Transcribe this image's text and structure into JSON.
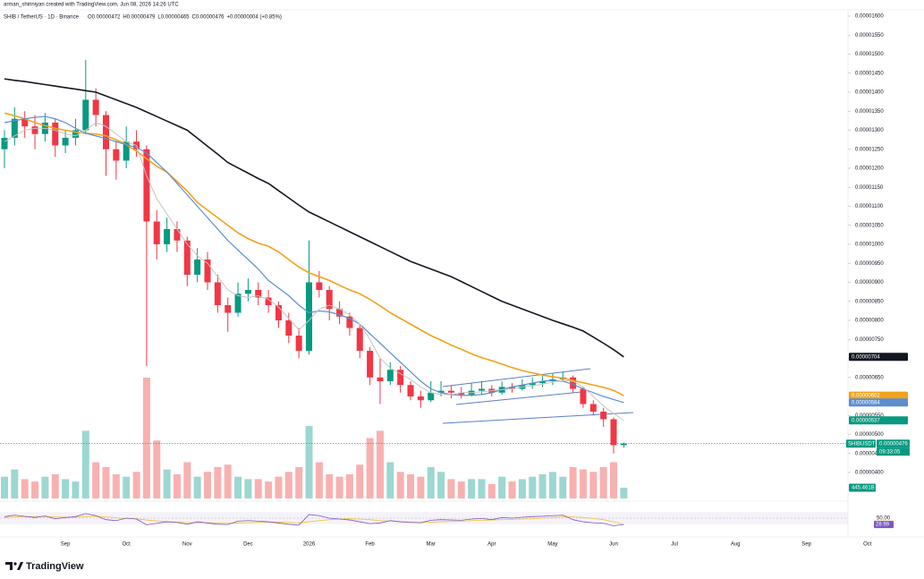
{
  "chart_data": {
    "type": "candlestick",
    "attribution": "arman_shiriniyan created with TradingView.com, Jun 08, 2026 14:26 UTC",
    "symbol": "SHIB / TetherUS · 1D · Binance",
    "ohlc": [
      "O0.00000472",
      "H0.00000479",
      "L0.00000465",
      "C0.00000476",
      "+0.00000004 (+0.85%)"
    ],
    "symbol_short": "SHIBUSDT",
    "countdown": "09:33:05",
    "brand": "TradingView",
    "up_color": "#089981",
    "down_color": "#f23645",
    "volume_up_color": "rgba(38,166,154,0.45)",
    "volume_down_color": "rgba(239,83,80,0.45)",
    "grid": false,
    "ylim": [
      4e-06,
      1.6e-05
    ],
    "yticks": [
      {
        "value": 4e-06,
        "label": "0.00000400"
      },
      {
        "value": 4.5e-06,
        "label": "0.00000450"
      },
      {
        "value": 5e-06,
        "label": "0.00000500"
      },
      {
        "value": 5.5e-06,
        "label": "0.00000550"
      },
      {
        "value": 6e-06,
        "label": "0.00000600"
      },
      {
        "value": 6.5e-06,
        "label": "0.00000650"
      },
      {
        "value": 7e-06,
        "label": "0.00000700"
      },
      {
        "value": 7.5e-06,
        "label": "0.00000750"
      },
      {
        "value": 8e-06,
        "label": "0.00000800"
      },
      {
        "value": 8.5e-06,
        "label": "0.00000850"
      },
      {
        "value": 9e-06,
        "label": "0.00000900"
      },
      {
        "value": 9.5e-06,
        "label": "0.00000950"
      },
      {
        "value": 1e-05,
        "label": "0.00001000"
      },
      {
        "value": 1.05e-05,
        "label": "0.00001050"
      },
      {
        "value": 1.1e-05,
        "label": "0.00001100"
      },
      {
        "value": 1.15e-05,
        "label": "0.00001150"
      },
      {
        "value": 1.2e-05,
        "label": "0.00001200"
      },
      {
        "value": 1.25e-05,
        "label": "0.00001250"
      },
      {
        "value": 1.3e-05,
        "label": "0.00001300"
      },
      {
        "value": 1.35e-05,
        "label": "0.00001350"
      },
      {
        "value": 1.4e-05,
        "label": "0.00001400"
      },
      {
        "value": 1.45e-05,
        "label": "0.00001450"
      },
      {
        "value": 1.5e-05,
        "label": "0.00001500"
      },
      {
        "value": 1.55e-05,
        "label": "0.00001550"
      },
      {
        "value": 1.6e-05,
        "label": "0.00001600"
      }
    ],
    "categories": [
      null,
      null,
      null,
      null,
      null,
      null,
      "Sep",
      null,
      null,
      null,
      null,
      null,
      "Oct",
      null,
      null,
      null,
      null,
      null,
      "Nov",
      null,
      null,
      null,
      null,
      null,
      "Dec",
      null,
      null,
      null,
      null,
      null,
      "2026",
      null,
      null,
      null,
      null,
      null,
      "Feb",
      null,
      null,
      null,
      null,
      null,
      "Mar",
      null,
      null,
      null,
      null,
      null,
      "Apr",
      null,
      null,
      null,
      null,
      null,
      "May",
      null,
      null,
      null,
      null,
      null,
      "Jun",
      null,
      null,
      null,
      null,
      null,
      "Jul",
      null,
      null,
      null,
      null,
      null,
      "Aug",
      null,
      null,
      null,
      null,
      null,
      null,
      "Sep",
      null,
      null,
      null,
      null,
      null,
      "Oct"
    ],
    "open": [
      1.25e-05,
      1.28e-05,
      1.33e-05,
      1.31e-05,
      1.29e-05,
      1.32e-05,
      1.26e-05,
      1.28e-05,
      1.3e-05,
      1.38e-05,
      1.34e-05,
      1.25e-05,
      1.22e-05,
      1.27e-05,
      1.25e-05,
      1.06e-05,
      1e-05,
      1.04e-05,
      1.01e-05,
      9.2e-06,
      9.6e-06,
      9e-06,
      8.4e-06,
      8.2e-06,
      8.7e-06,
      8.8e-06,
      8.6e-06,
      8.4e-06,
      8e-06,
      7.6e-06,
      7.2e-06,
      9e-06,
      8.8e-06,
      8.3e-06,
      8.1e-06,
      7.8e-06,
      7.2e-06,
      6.5e-06,
      6.4e-06,
      6.7e-06,
      6.3e-06,
      6e-06,
      5.9e-06,
      6.1e-06,
      6.15e-06,
      6.1e-06,
      6.05e-06,
      6.15e-06,
      6.2e-06,
      6.1e-06,
      6.25e-06,
      6.2e-06,
      6.3e-06,
      6.35e-06,
      6.4e-06,
      6.45e-06,
      6.5e-06,
      6.2e-06,
      5.8e-06,
      5.6e-06,
      5.4e-06,
      4.72e-06,
      null,
      null,
      null,
      null,
      null,
      null,
      null,
      null,
      null,
      null,
      null,
      null,
      null,
      null,
      null,
      null,
      null,
      null,
      null,
      null,
      null,
      null,
      null,
      null
    ],
    "high": [
      1.3e-05,
      1.36e-05,
      1.35e-05,
      1.34e-05,
      1.345e-05,
      1.33e-05,
      1.3e-05,
      1.33e-05,
      1.485e-05,
      1.41e-05,
      1.35e-05,
      1.27e-05,
      1.31e-05,
      1.3e-05,
      1.26e-05,
      1.09e-05,
      1.07e-05,
      1.06e-05,
      1.02e-05,
      9.9e-06,
      9.8e-06,
      9.2e-06,
      8.6e-06,
      9e-06,
      9.1e-06,
      9e-06,
      8.8e-06,
      8.5e-06,
      8.2e-06,
      7.8e-06,
      1.01e-05,
      9.3e-06,
      8.9e-06,
      8.5e-06,
      8.2e-06,
      7.9e-06,
      7.3e-06,
      7e-06,
      6.9e-06,
      6.8e-06,
      6.4e-06,
      6.15e-06,
      6.4e-06,
      6.4e-06,
      6.3e-06,
      6.25e-06,
      6.35e-06,
      6.4e-06,
      6.3e-06,
      6.4e-06,
      6.35e-06,
      6.45e-06,
      6.5e-06,
      6.55e-06,
      6.6e-06,
      6.65e-06,
      6.55e-06,
      6.25e-06,
      5.9e-06,
      5.7e-06,
      5.45e-06,
      4.79e-06,
      null,
      null,
      null,
      null,
      null,
      null,
      null,
      null,
      null,
      null,
      null,
      null,
      null,
      null,
      null,
      null,
      null,
      null,
      null,
      null,
      null,
      null,
      null,
      null
    ],
    "low": [
      1.2e-05,
      1.26e-05,
      1.28e-05,
      1.25e-05,
      1.27e-05,
      1.23e-05,
      1.24e-05,
      1.26e-05,
      1.29e-05,
      1.31e-05,
      1.18e-05,
      1.17e-05,
      1.2e-05,
      1.23e-05,
      6.8e-06,
      9.6e-06,
      9.8e-06,
      9.8e-06,
      8.9e-06,
      9e-06,
      8.8e-06,
      8.2e-06,
      7.7e-06,
      8.1e-06,
      8.5e-06,
      8.4e-06,
      8.2e-06,
      7.8e-06,
      7.4e-06,
      7e-06,
      7.1e-06,
      8.6e-06,
      8e-06,
      7.9e-06,
      7.6e-06,
      7e-06,
      6.3e-06,
      5.8e-06,
      6.3e-06,
      6.1e-06,
      5.9e-06,
      5.7e-06,
      5.85e-06,
      6e-06,
      5.95e-06,
      5.95e-06,
      6e-06,
      6.05e-06,
      6e-06,
      6.05e-06,
      6.1e-06,
      6.15e-06,
      6.2e-06,
      6.25e-06,
      6.3e-06,
      6.4e-06,
      6.1e-06,
      5.7e-06,
      5.5e-06,
      5.2e-06,
      4.5e-06,
      4.65e-06,
      null,
      null,
      null,
      null,
      null,
      null,
      null,
      null,
      null,
      null,
      null,
      null,
      null,
      null,
      null,
      null,
      null,
      null,
      null,
      null,
      null,
      null,
      null,
      null
    ],
    "close": [
      1.28e-05,
      1.33e-05,
      1.31e-05,
      1.29e-05,
      1.32e-05,
      1.26e-05,
      1.28e-05,
      1.3e-05,
      1.38e-05,
      1.34e-05,
      1.25e-05,
      1.22e-05,
      1.27e-05,
      1.25e-05,
      1.06e-05,
      1e-05,
      1.04e-05,
      1.01e-05,
      9.2e-06,
      9.6e-06,
      9e-06,
      8.4e-06,
      8.2e-06,
      8.7e-06,
      8.8e-06,
      8.6e-06,
      8.4e-06,
      8e-06,
      7.6e-06,
      7.2e-06,
      9e-06,
      8.8e-06,
      8.3e-06,
      8.1e-06,
      7.8e-06,
      7.2e-06,
      6.5e-06,
      6.4e-06,
      6.7e-06,
      6.3e-06,
      6e-06,
      5.9e-06,
      6.1e-06,
      6.15e-06,
      6.1e-06,
      6.05e-06,
      6.15e-06,
      6.2e-06,
      6.1e-06,
      6.25e-06,
      6.2e-06,
      6.3e-06,
      6.35e-06,
      6.4e-06,
      6.45e-06,
      6.5e-06,
      6.2e-06,
      5.8e-06,
      5.6e-06,
      5.4e-06,
      4.72e-06,
      4.76e-06,
      null,
      null,
      null,
      null,
      null,
      null,
      null,
      null,
      null,
      null,
      null,
      null,
      null,
      null,
      null,
      null,
      null,
      null,
      null,
      null,
      null,
      null,
      null,
      null
    ],
    "series": [
      {
        "color": "#131722",
        "label_color": "#131722",
        "values": [
          1.435e-05,
          1.431e-05,
          1.428e-05,
          1.424e-05,
          1.42e-05,
          1.416e-05,
          1.412e-05,
          1.408e-05,
          1.404e-05,
          1.4e-05,
          1.39e-05,
          1.38e-05,
          1.37e-05,
          1.36e-05,
          1.348e-05,
          1.336e-05,
          1.324e-05,
          1.312e-05,
          1.3e-05,
          1.279e-05,
          1.258e-05,
          1.237e-05,
          1.215e-05,
          1.201e-05,
          1.187e-05,
          1.173e-05,
          1.16e-05,
          1.141e-05,
          1.122e-05,
          1.103e-05,
          1.085e-05,
          1.072e-05,
          1.059e-05,
          1.046e-05,
          1.033e-05,
          1.02e-05,
          1.007e-05,
          9.94e-06,
          9.81e-06,
          9.68e-06,
          9.55e-06,
          9.45e-06,
          9.35e-06,
          9.25e-06,
          9.15e-06,
          9.02e-06,
          8.89e-06,
          8.76e-06,
          8.63e-06,
          8.5e-06,
          8.4e-06,
          8.3e-06,
          8.2e-06,
          8.1e-06,
          8e-06,
          7.91e-06,
          7.82e-06,
          7.72e-06,
          7.56e-06,
          7.4e-06,
          7.23e-06,
          7.04e-06,
          null,
          null,
          null,
          null,
          null,
          null,
          null,
          null,
          null,
          null,
          null,
          null,
          null,
          null,
          null,
          null,
          null,
          null,
          null,
          null,
          null,
          null,
          null,
          null
        ]
      },
      {
        "color": "#f0a31a",
        "label_color": "#f0a31a",
        "values": [
          1.345e-05,
          1.338e-05,
          1.33e-05,
          1.32e-05,
          1.312e-05,
          1.305e-05,
          1.3e-05,
          1.295e-05,
          1.292e-05,
          1.29e-05,
          1.285e-05,
          1.275e-05,
          1.262e-05,
          1.245e-05,
          1.225e-05,
          1.205e-05,
          1.19e-05,
          1.165e-05,
          1.14e-05,
          1.11e-05,
          1.09e-05,
          1.07e-05,
          1.05e-05,
          1.03e-05,
          1.015e-05,
          1.003e-05,
          9.95e-06,
          9.8e-06,
          9.6e-06,
          9.4e-06,
          9.25e-06,
          9.15e-06,
          9.05e-06,
          8.92e-06,
          8.8e-06,
          8.7e-06,
          8.55e-06,
          8.38e-06,
          8.2e-06,
          8.05e-06,
          7.9e-06,
          7.75e-06,
          7.6e-06,
          7.48e-06,
          7.35e-06,
          7.24e-06,
          7.12e-06,
          7.02e-06,
          6.94e-06,
          6.85e-06,
          6.76e-06,
          6.68e-06,
          6.62e-06,
          6.56e-06,
          6.52e-06,
          6.48e-06,
          6.42e-06,
          6.36e-06,
          6.3e-06,
          6.24e-06,
          6.16e-06,
          6.02e-06,
          null,
          null,
          null,
          null,
          null,
          null,
          null,
          null,
          null,
          null,
          null,
          null,
          null,
          null,
          null,
          null,
          null,
          null,
          null,
          null,
          null,
          null,
          null,
          null
        ]
      },
      {
        "color": "#5b8fd0",
        "label_color": "#5b8fd0",
        "values": [
          1.32e-05,
          1.325e-05,
          1.33e-05,
          1.334e-05,
          1.336e-05,
          1.33e-05,
          1.32e-05,
          1.305e-05,
          1.292e-05,
          1.285e-05,
          1.278e-05,
          1.27e-05,
          1.262e-05,
          1.255e-05,
          1.24e-05,
          1.215e-05,
          1.19e-05,
          1.16e-05,
          1.13e-05,
          1.1e-05,
          1.07e-05,
          1.04e-05,
          1.01e-05,
          9.85e-06,
          9.6e-06,
          9.35e-06,
          9.05e-06,
          8.85e-06,
          8.65e-06,
          8.4e-06,
          8.2e-06,
          8.25e-06,
          8.22e-06,
          8.15e-06,
          8.05e-06,
          7.9e-06,
          7.65e-06,
          7.4e-06,
          7.15e-06,
          6.9e-06,
          6.65e-06,
          6.4e-06,
          6.2e-06,
          6.1e-06,
          6.05e-06,
          6.03e-06,
          6.03e-06,
          6.05e-06,
          6.1e-06,
          6.18e-06,
          6.25e-06,
          6.3e-06,
          6.35e-06,
          6.4e-06,
          6.42e-06,
          6.4e-06,
          6.32e-06,
          6.2e-06,
          6.1e-06,
          6e-06,
          5.92e-06,
          5.84e-06,
          null,
          null,
          null,
          null,
          null,
          null,
          null,
          null,
          null,
          null,
          null,
          null,
          null,
          null,
          null,
          null,
          null,
          null,
          null,
          null,
          null,
          null,
          null,
          null
        ]
      },
      {
        "color": "#c9c4bd",
        "label_color": "#089981",
        "values": [
          1.27e-05,
          1.285e-05,
          1.3e-05,
          1.305e-05,
          1.305e-05,
          1.3e-05,
          1.29e-05,
          1.285e-05,
          1.3e-05,
          1.32e-05,
          1.31e-05,
          1.29e-05,
          1.27e-05,
          1.26e-05,
          1.18e-05,
          1.12e-05,
          1.08e-05,
          1.04e-05,
          1e-05,
          9.7e-06,
          9.5e-06,
          9.15e-06,
          8.8e-06,
          8.65e-06,
          8.6e-06,
          8.65e-06,
          8.55e-06,
          8.35e-06,
          8.05e-06,
          7.75e-06,
          8e-06,
          8.3e-06,
          8.4e-06,
          8.3e-06,
          8.15e-06,
          7.9e-06,
          7.5e-06,
          7e-06,
          6.75e-06,
          6.6e-06,
          6.45e-06,
          6.25e-06,
          6.1e-06,
          6.05e-06,
          6.05e-06,
          6.1e-06,
          6.1e-06,
          6.12e-06,
          6.15e-06,
          6.18e-06,
          6.2e-06,
          6.25e-06,
          6.28e-06,
          6.32e-06,
          6.38e-06,
          6.42e-06,
          6.4e-06,
          6.25e-06,
          6e-06,
          5.75e-06,
          5.55e-06,
          5.37e-06,
          null,
          null,
          null,
          null,
          null,
          null,
          null,
          null,
          null,
          null,
          null,
          null,
          null,
          null,
          null,
          null,
          null,
          null,
          null,
          null,
          null,
          null,
          null,
          null
        ]
      }
    ],
    "volume": {
      "ylim": [
        0,
        5000
      ],
      "last_label": "445.461B",
      "values": [
        900,
        1200,
        800,
        700,
        900,
        1000,
        800,
        700,
        2800,
        1500,
        1300,
        1000,
        900,
        1100,
        5000,
        2400,
        1200,
        1000,
        1500,
        900,
        1100,
        1300,
        1400,
        900,
        800,
        800,
        700,
        900,
        1100,
        1300,
        3000,
        1500,
        1000,
        900,
        1000,
        1400,
        2500,
        2800,
        1500,
        1100,
        1000,
        900,
        1300,
        1100,
        800,
        700,
        800,
        800,
        600,
        900,
        700,
        800,
        900,
        1000,
        1100,
        900,
        1300,
        1200,
        1100,
        1300,
        1500,
        445.461,
        null,
        null,
        null,
        null,
        null,
        null,
        null,
        null,
        null,
        null,
        null,
        null,
        null,
        null,
        null,
        null,
        null,
        null,
        null,
        null,
        null,
        null,
        null,
        null
      ]
    },
    "rsi": {
      "ylim": [
        0,
        100
      ],
      "band": [
        30,
        70
      ],
      "yticks": [
        {
          "value": 50,
          "label": "50.00"
        }
      ],
      "color": "#7e57c2",
      "ma_color": "#f2c230",
      "values": [
        55,
        60,
        56,
        52,
        57,
        48,
        52,
        55,
        65,
        58,
        45,
        42,
        50,
        47,
        28,
        33,
        38,
        36,
        30,
        38,
        34,
        30,
        29,
        40,
        42,
        40,
        38,
        34,
        30,
        27,
        62,
        58,
        50,
        47,
        44,
        38,
        32,
        34,
        42,
        38,
        36,
        35,
        43,
        45,
        44,
        43,
        47,
        49,
        45,
        52,
        50,
        53,
        55,
        56,
        58,
        60,
        45,
        38,
        35,
        33,
        25,
        28.99,
        null,
        null,
        null,
        null,
        null,
        null,
        null,
        null,
        null,
        null,
        null,
        null,
        null,
        null,
        null,
        null,
        null,
        null,
        null,
        null,
        null,
        null,
        null,
        null
      ],
      "ma_values": [
        52,
        54,
        55,
        55,
        55,
        54,
        53,
        53,
        55,
        56,
        54,
        51,
        49,
        48,
        44,
        41,
        39,
        37,
        35,
        35,
        35,
        34,
        33,
        34,
        35,
        36,
        37,
        37,
        36,
        34,
        38,
        42,
        45,
        47,
        48,
        47,
        45,
        42,
        40,
        38,
        37,
        36,
        37,
        38,
        39,
        40,
        42,
        43,
        44,
        45,
        46,
        47,
        48,
        50,
        52,
        54,
        54,
        52,
        49,
        45,
        38,
        30.22,
        null,
        null,
        null,
        null,
        null,
        null,
        null,
        null,
        null,
        null,
        null,
        null,
        null,
        null,
        null,
        null,
        null,
        null,
        null,
        null,
        null,
        null,
        null,
        null
      ]
    }
  }
}
